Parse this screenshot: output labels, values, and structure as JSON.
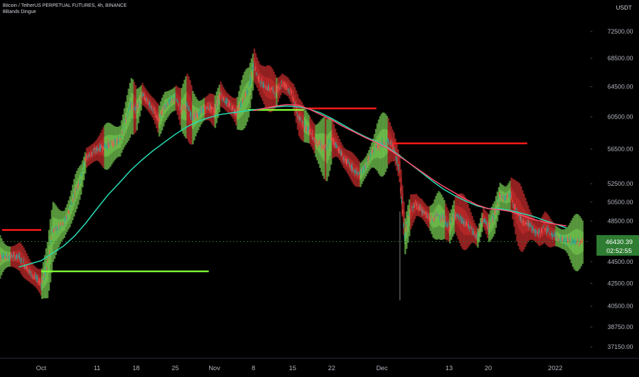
{
  "header": {
    "symbol_line": "Bitcoin / TetherUS PERPETUAL FUTURES, 4h, BINANCE",
    "indicator": "BBands Dingue"
  },
  "currency": {
    "line1": "USDT"
  },
  "price_badge": {
    "price": "46430.39",
    "timer": "02:52:55",
    "bg": "#2e7d32"
  },
  "colors": {
    "background": "#000000",
    "green_band": "#7ed957",
    "red_band": "#d32f2f",
    "ma_fast": "#26d9b0",
    "ma_slow": "#ff4d6d",
    "level_red": "#ff1a1a",
    "level_green": "#7cfc32"
  },
  "chart_data": {
    "type": "line",
    "title": "Bitcoin / TetherUS PERPETUAL FUTURES, 4h, BINANCE",
    "y_scale": "log",
    "ylim": [
      36000,
      78000
    ],
    "y_ticks": [
      72500,
      68500,
      64500,
      60500,
      56500,
      52500,
      50500,
      48500,
      44500,
      42500,
      40500,
      38750,
      37150
    ],
    "y_tick_labels": [
      "72500.00",
      "68500.00",
      "64500.00",
      "60500.00",
      "56500.00",
      "52500.00",
      "50500.00",
      "48500.00",
      "44500.00",
      "42500.00",
      "40500.00",
      "38750.00",
      "37150.00"
    ],
    "x_tick_labels": [
      "Oct",
      "11",
      "18",
      "25",
      "Nov",
      "8",
      "15",
      "22",
      "Dec",
      "13",
      "20",
      "2022"
    ],
    "x_tick_days": [
      0,
      10,
      17,
      24,
      31,
      38,
      45,
      52,
      61,
      73,
      80,
      92
    ],
    "series": [
      {
        "key": "price",
        "days": [
          -4,
          -2,
          0,
          1,
          2,
          3,
          4,
          5,
          6,
          7,
          8,
          10,
          12,
          14,
          16,
          17,
          18,
          19,
          20,
          21,
          22,
          23,
          24,
          25,
          26,
          27,
          28,
          29,
          30,
          31,
          32,
          33,
          34,
          35,
          36,
          37,
          38,
          39,
          40,
          41,
          42,
          43,
          44,
          45,
          46,
          47,
          48,
          49,
          50,
          51,
          52,
          53,
          54,
          55,
          56,
          57,
          58,
          59,
          60,
          61,
          62,
          63,
          64,
          65,
          66,
          67,
          68,
          69,
          70,
          71,
          72,
          73,
          74,
          75,
          76,
          77,
          78,
          79,
          80,
          81,
          82,
          83,
          84,
          85,
          86,
          87,
          88,
          89,
          90,
          91,
          92,
          93,
          94,
          95
        ],
        "values": [
          45000,
          43500,
          42500,
          43800,
          47500,
          47800,
          48200,
          49500,
          51500,
          53000,
          55500,
          56500,
          57000,
          57500,
          62000,
          61500,
          63500,
          62500,
          61500,
          60000,
          61800,
          62500,
          63000,
          61500,
          62000,
          60500,
          60700,
          61500,
          61800,
          61200,
          63500,
          62500,
          61800,
          61000,
          62500,
          63800,
          67500,
          65500,
          64500,
          64200,
          63800,
          65000,
          64500,
          63200,
          60500,
          59500,
          58800,
          57500,
          57000,
          56500,
          57800,
          56800,
          55500,
          54800,
          54000,
          53500,
          54500,
          55800,
          56800,
          57200,
          57500,
          56800,
          54300,
          47000,
          49500,
          50200,
          49800,
          49000,
          48600,
          49200,
          48700,
          47800,
          49300,
          48700,
          48200,
          47700,
          46800,
          48900,
          47800,
          48900,
          51200,
          50900,
          51300,
          49600,
          48600,
          48300,
          47700,
          47200,
          47900,
          47300,
          47000,
          46700,
          46600,
          46430
        ]
      },
      {
        "key": "ma_fast",
        "days": [
          -4,
          0,
          2,
          4,
          6,
          8,
          10,
          12,
          14,
          16,
          18,
          20,
          22,
          24,
          26,
          28,
          30,
          32,
          34,
          36,
          38,
          40,
          42,
          44,
          46,
          48,
          50,
          52,
          54,
          56,
          58,
          60,
          62,
          64,
          66,
          68,
          70,
          72,
          74,
          76,
          78,
          80,
          82,
          84,
          86,
          88,
          90,
          92,
          94
        ],
        "values": [
          44000,
          44600,
          45300,
          46000,
          47000,
          48300,
          49800,
          51300,
          52600,
          54000,
          55200,
          56300,
          57300,
          58300,
          59200,
          59900,
          60400,
          60800,
          61000,
          61200,
          61400,
          61600,
          61800,
          61900,
          61800,
          61500,
          61000,
          60300,
          59500,
          58700,
          58000,
          57400,
          56700,
          55800,
          54800,
          53800,
          52800,
          51900,
          51200,
          50600,
          50100,
          49800,
          49800,
          49600,
          49300,
          49000,
          48600,
          48200,
          47800
        ]
      },
      {
        "key": "ma_slow",
        "days": [
          38,
          40,
          42,
          44,
          46,
          48,
          50,
          52,
          54,
          56,
          58,
          60,
          62,
          64,
          66,
          68,
          70,
          72,
          74,
          76,
          78,
          80,
          82,
          84,
          86,
          88,
          90,
          92,
          94
        ],
        "values": [
          61300,
          61600,
          61900,
          62100,
          62000,
          61500,
          60800,
          60100,
          59300,
          58600,
          57900,
          57300,
          56600,
          55700,
          54800,
          53900,
          53000,
          52200,
          51500,
          50800,
          50200,
          49800,
          49700,
          49500,
          49100,
          48700,
          48400,
          48200,
          48000
        ]
      }
    ],
    "levels": [
      {
        "color": "red",
        "price": 47600,
        "from_day": -7,
        "to_day": 0
      },
      {
        "color": "green",
        "price": 43600,
        "from_day": 0,
        "to_day": 30
      },
      {
        "color": "green",
        "price": 61400,
        "from_day": 37,
        "to_day": 47
      },
      {
        "color": "red",
        "price": 61600,
        "from_day": 47,
        "to_day": 60
      },
      {
        "color": "red",
        "price": 57200,
        "from_day": 63,
        "to_day": 87
      }
    ]
  }
}
